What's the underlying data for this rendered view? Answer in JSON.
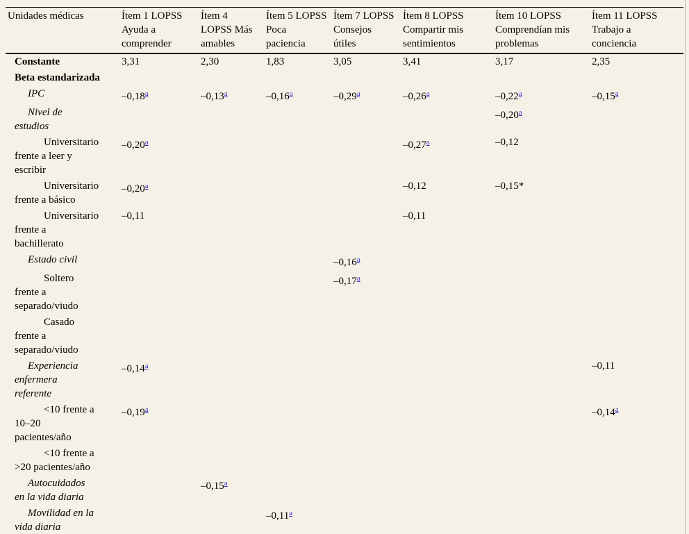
{
  "colors": {
    "background": "#f6f1e6",
    "text": "#000000",
    "footnote_link": "#3333cc",
    "rule": "#000000"
  },
  "table": {
    "columns": [
      {
        "id": "unidades-medicas",
        "lines": [
          "Unidades médicas"
        ]
      },
      {
        "id": "item-1",
        "lines": [
          "Ítem 1 LOPSS",
          "Ayuda a",
          "comprender"
        ]
      },
      {
        "id": "item-4",
        "lines": [
          "Ítem 4",
          "LOPSS Más",
          "amables"
        ]
      },
      {
        "id": "item-5",
        "lines": [
          "Ítem 5 LOPSS",
          "Poca",
          "paciencia"
        ]
      },
      {
        "id": "item-7",
        "lines": [
          "Ítem 7 LOPSS",
          "Consejos",
          "útiles"
        ]
      },
      {
        "id": "item-8",
        "lines": [
          "Ítem 8 LOPSS",
          "Compartir mis",
          "sentimientos"
        ]
      },
      {
        "id": "item-10",
        "lines": [
          "Ítem 10 LOPSS",
          "Comprendían mis",
          "problemas"
        ]
      },
      {
        "id": "item-11",
        "lines": [
          "Ítem 11 LOPSS",
          "Trabajo a",
          "conciencia"
        ]
      }
    ],
    "rows": [
      {
        "id": "constante",
        "style": "bold",
        "indent": 0,
        "label_lines": [
          "Constante"
        ],
        "values": [
          {
            "col": 1,
            "text": "3,31"
          },
          {
            "col": 2,
            "text": "2,30"
          },
          {
            "col": 3,
            "text": "1,83"
          },
          {
            "col": 4,
            "text": "3,05"
          },
          {
            "col": 5,
            "text": "3,41"
          },
          {
            "col": 6,
            "text": "3,17"
          },
          {
            "col": 7,
            "text": "2,35"
          }
        ]
      },
      {
        "id": "beta-estandarizada",
        "style": "bold",
        "indent": 0,
        "label_lines": [
          "Beta estandarizada"
        ],
        "values": []
      },
      {
        "id": "ipc",
        "style": "italic",
        "indent": 1,
        "label_lines": [
          "IPC"
        ],
        "values": [
          {
            "col": 1,
            "text": "–0,18",
            "sup": "a"
          },
          {
            "col": 2,
            "text": "–0,13",
            "sup": "a"
          },
          {
            "col": 3,
            "text": "–0,16",
            "sup": "a"
          },
          {
            "col": 4,
            "text": "–0,29",
            "sup": "a"
          },
          {
            "col": 5,
            "text": "–0,26",
            "sup": "a"
          },
          {
            "col": 6,
            "text": "–0,22",
            "sup": "a"
          },
          {
            "col": 7,
            "text": "–0,15",
            "sup": "a"
          }
        ]
      },
      {
        "id": "nivel-de-estudios",
        "style": "italic",
        "indent": 1,
        "label_lines": [
          "Nivel de",
          "estudios"
        ],
        "values": [
          {
            "col": 6,
            "text": "–0,20",
            "sup": "a"
          }
        ]
      },
      {
        "id": "universitario-vs-leer-escribir",
        "style": "plain",
        "indent": 2,
        "label_lines": [
          "Universitario",
          "frente a leer y",
          "escribir"
        ],
        "values": [
          {
            "col": 1,
            "text": "–0,20",
            "sup": "a"
          },
          {
            "col": 5,
            "text": "–0,27",
            "sup": "a"
          },
          {
            "col": 6,
            "text": "–0,12"
          }
        ]
      },
      {
        "id": "universitario-vs-basico",
        "style": "plain",
        "indent": 2,
        "label_lines": [
          "Universitario",
          "frente a básico"
        ],
        "values": [
          {
            "col": 1,
            "text": "–0,20",
            "sup": "a"
          },
          {
            "col": 5,
            "text": "–0,12"
          },
          {
            "col": 6,
            "text": "–0,15*"
          }
        ]
      },
      {
        "id": "universitario-vs-bachillerato",
        "style": "plain",
        "indent": 2,
        "label_lines": [
          "Universitario",
          "frente a",
          "bachillerato"
        ],
        "values": [
          {
            "col": 1,
            "text": "–0,11"
          },
          {
            "col": 5,
            "text": "–0,11"
          }
        ]
      },
      {
        "id": "estado-civil",
        "style": "italic",
        "indent": 1,
        "label_lines": [
          "Estado civil"
        ],
        "values": [
          {
            "col": 4,
            "text": "–0,16",
            "sup": "a"
          }
        ]
      },
      {
        "id": "soltero-vs-separado-viudo",
        "style": "plain",
        "indent": 2,
        "label_lines": [
          "Soltero",
          "frente a",
          "separado/viudo"
        ],
        "values": [
          {
            "col": 4,
            "text": "–0,17",
            "sup": "a"
          }
        ]
      },
      {
        "id": "casado-vs-separado-viudo",
        "style": "plain",
        "indent": 2,
        "label_lines": [
          "Casado",
          "frente a",
          "separado/viudo"
        ],
        "values": []
      },
      {
        "id": "experiencia-enfermera-referente",
        "style": "italic",
        "indent": 1,
        "label_lines": [
          "Experiencia",
          "enfermera",
          "referente"
        ],
        "values": [
          {
            "col": 1,
            "text": "–0,14",
            "sup": "a"
          },
          {
            "col": 7,
            "text": "–0,11"
          }
        ]
      },
      {
        "id": "menos10-vs-10-20",
        "style": "plain",
        "indent": 2,
        "label_lines": [
          "<10 frente a",
          "10–20",
          "pacientes/año"
        ],
        "values": [
          {
            "col": 1,
            "text": "–0,19",
            "sup": "a"
          },
          {
            "col": 7,
            "text": "–0,14",
            "sup": "a"
          }
        ]
      },
      {
        "id": "menos10-vs-mas20",
        "style": "plain",
        "indent": 2,
        "label_lines": [
          "<10 frente a",
          ">20 pacientes/año"
        ],
        "values": []
      },
      {
        "id": "autocuidados-vida-diaria",
        "style": "italic",
        "indent": 1,
        "label_lines": [
          "Autocuidados",
          "en la vida diaria"
        ],
        "values": [
          {
            "col": 2,
            "text": "–0,15",
            "sup": "a"
          }
        ]
      },
      {
        "id": "movilidad-vida-diaria",
        "style": "italic",
        "indent": 1,
        "label_lines": [
          "Movilidad en la",
          "vida diaria"
        ],
        "values": [
          {
            "col": 3,
            "text": "–0,11",
            "sup": "a"
          }
        ]
      }
    ]
  }
}
